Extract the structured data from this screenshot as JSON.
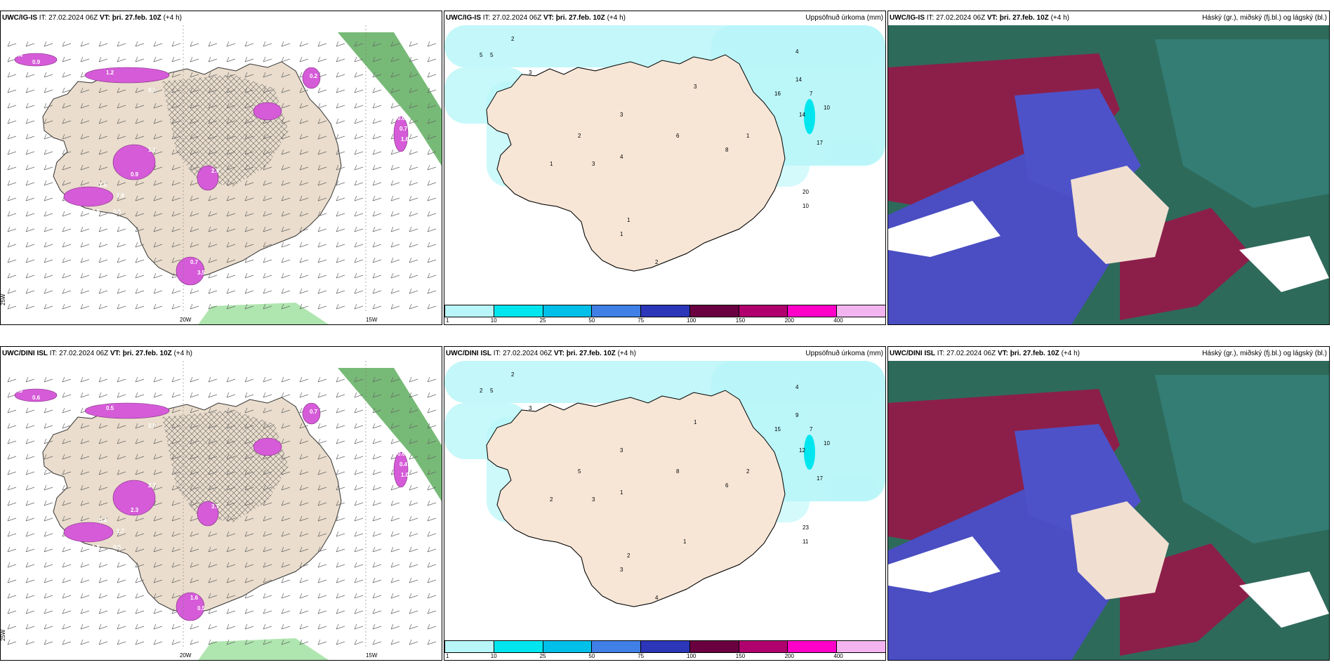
{
  "panels": [
    {
      "model": "UWC/IG-IS",
      "it": "IT: 27.02.2024 06Z",
      "vt_label": "VT:",
      "vt": "þri. 27.feb. 10Z",
      "lead": "(+4 h)",
      "right": ""
    },
    {
      "model": "UWC/IG-IS",
      "it": "IT: 27.02.2024 06Z",
      "vt_label": "VT:",
      "vt": "þri. 27.feb. 10Z",
      "lead": "(+4 h)",
      "right": "Uppsöfnuð úrkoma (mm)"
    },
    {
      "model": "UWC/IG-IS",
      "it": "IT: 27.02.2024 06Z",
      "vt_label": "VT:",
      "vt": "þri. 27.feb. 10Z",
      "lead": "(+4 h)",
      "right": "Háský (gr.), miðský (fj.bl.) og lágský (bl.)"
    },
    {
      "model": "UWC/DINI ISL",
      "it": "IT: 27.02.2024 06Z",
      "vt_label": "VT:",
      "vt": "þri. 27.feb. 10Z",
      "lead": "(+4 h)",
      "right": ""
    },
    {
      "model": "UWC/DINI ISL",
      "it": "IT: 27.02.2024 06Z",
      "vt_label": "VT:",
      "vt": "þri. 27.feb. 10Z",
      "lead": "(+4 h)",
      "right": "Uppsöfnuð úrkoma (mm)"
    },
    {
      "model": "UWC/DINI ISL",
      "it": "IT: 27.02.2024 06Z",
      "vt_label": "VT:",
      "vt": "þri. 27.feb. 10Z",
      "lead": "(+4 h)",
      "right": "Háský (gr.), miðský (fj.bl.) og lágský (bl.)"
    }
  ],
  "axis_labels": {
    "lon1": "20W",
    "lon2": "15W",
    "lat": "25W"
  },
  "legend": {
    "ticks": [
      "1",
      "10",
      "25",
      "50",
      "75",
      "100",
      "150",
      "200",
      "400"
    ],
    "colors": [
      "#b9f6f9",
      "#00e6ee",
      "#00bfe8",
      "#3f7fe6",
      "#2c36b8",
      "#6a0040",
      "#b0006e",
      "#ff00c8",
      "#f4b4f0"
    ]
  },
  "precip_ig": [
    "5",
    "5",
    "2",
    "3",
    "4",
    "7",
    "10",
    "14",
    "17",
    "20",
    "16",
    "14",
    "8",
    "10",
    "6",
    "2",
    "3",
    "1",
    "4",
    "2",
    "1",
    "3",
    "3",
    "1",
    "1"
  ],
  "precip_dini": [
    "2",
    "5",
    "2",
    "3",
    "4",
    "7",
    "10",
    "12",
    "17",
    "23",
    "15",
    "9",
    "6",
    "11",
    "8",
    "5",
    "3",
    "2",
    "1",
    "4",
    "2",
    "1",
    "3",
    "2",
    "3",
    "1"
  ],
  "wind_ig": [
    "0.4",
    "0.9",
    "0.6",
    "1.2",
    "0.3",
    "2.5",
    "1.6",
    "0.9",
    "1.1",
    "0.7",
    "3.5",
    "2.9",
    "0.3",
    "0.2",
    "0.6",
    "0.7",
    "1.6",
    "0.5",
    "0.6",
    "0.6"
  ],
  "wind_dini": [
    "0.3",
    "0.6",
    "0.2",
    "0.5",
    "2.0",
    "0.4",
    "1.7",
    "2.3",
    "2.7",
    "1.6",
    "0.5",
    "3.7",
    "0.8",
    "0.7",
    "0.6",
    "0.4",
    "1.0",
    "0.9",
    "1.8",
    "0.5"
  ]
}
